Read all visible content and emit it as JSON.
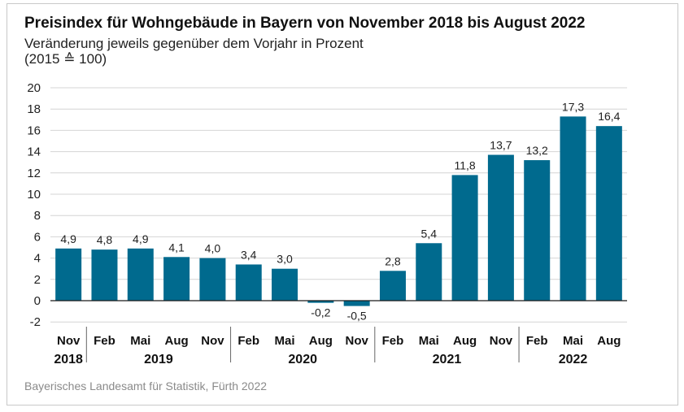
{
  "header": {
    "title": "Preisindex für Wohngebäude in Bayern von November 2018 bis August 2022",
    "subtitle": "Veränderung jeweils gegenüber dem Vorjahr in Prozent",
    "note": "(2015 ≙ 100)"
  },
  "footer": {
    "source": "Bayerisches Landesamt für Statistik, Fürth 2022"
  },
  "chart_data": {
    "type": "bar",
    "title": "Preisindex für Wohngebäude in Bayern von November 2018 bis August 2022",
    "subtitle": "Veränderung jeweils gegenüber dem Vorjahr in Prozent",
    "categories": [
      "Nov",
      "Feb",
      "Mai",
      "Aug",
      "Nov",
      "Feb",
      "Mai",
      "Aug",
      "Nov",
      "Feb",
      "Mai",
      "Aug",
      "Nov",
      "Feb",
      "Mai",
      "Aug"
    ],
    "years": [
      "2018",
      "2019",
      "2019",
      "2019",
      "2019",
      "2020",
      "2020",
      "2020",
      "2020",
      "2021",
      "2021",
      "2021",
      "2021",
      "2022",
      "2022",
      "2022"
    ],
    "year_groups": [
      {
        "label": "2018",
        "start": 0,
        "end": 0
      },
      {
        "label": "2019",
        "start": 1,
        "end": 4
      },
      {
        "label": "2020",
        "start": 5,
        "end": 8
      },
      {
        "label": "2021",
        "start": 9,
        "end": 12
      },
      {
        "label": "2022",
        "start": 13,
        "end": 15
      }
    ],
    "values": [
      4.9,
      4.8,
      4.9,
      4.1,
      4.0,
      3.4,
      3.0,
      -0.2,
      -0.5,
      2.8,
      5.4,
      11.8,
      13.7,
      13.2,
      17.3,
      16.4
    ],
    "value_labels": [
      "4,9",
      "4,8",
      "4,9",
      "4,1",
      "4,0",
      "3,4",
      "3,0",
      "-0,2",
      "-0,5",
      "2,8",
      "5,4",
      "11,8",
      "13,7",
      "13,2",
      "17,3",
      "16,4"
    ],
    "yticks": [
      -2,
      0,
      2,
      4,
      6,
      8,
      10,
      12,
      14,
      16,
      18,
      20
    ],
    "ylim": [
      -2,
      20
    ],
    "grid": true,
    "bar_color": "#006a8e",
    "grid_color": "#d4d4d4"
  }
}
